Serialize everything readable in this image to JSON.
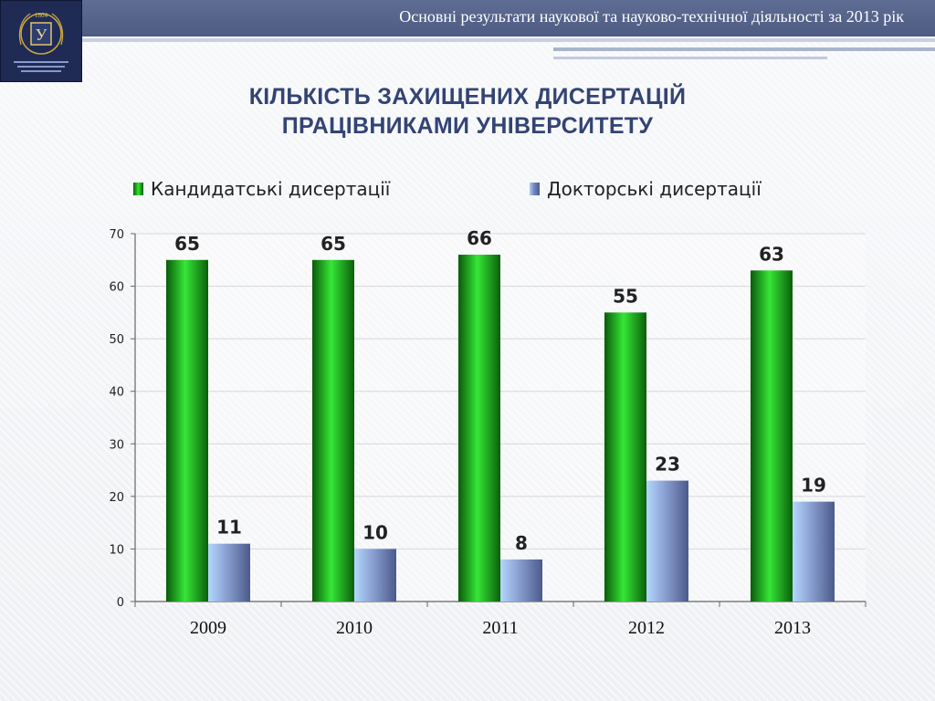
{
  "header": {
    "title": "Основні результати наукової та науково-технічної діяльності за 2013 рік"
  },
  "logo": {
    "letter": "У",
    "year": "1804"
  },
  "headline": {
    "line1": "КІЛЬКІСТЬ ЗАХИЩЕНИХ ДИСЕРТАЦІЙ",
    "line2": "ПРАЦІВНИКАМИ УНІВЕРСИТЕТУ"
  },
  "colors": {
    "header": "#5564 8b",
    "title": "#334474",
    "candidate_bar": "#1fbf1f",
    "doctoral_bar": "#7d8fc4"
  },
  "chart_data": {
    "type": "bar",
    "categories": [
      "2009",
      "2010",
      "2011",
      "2012",
      "2013"
    ],
    "series": [
      {
        "name": "Кандидатські дисертації",
        "values": [
          65,
          65,
          66,
          55,
          63
        ]
      },
      {
        "name": "Докторські дисертації",
        "values": [
          11,
          10,
          8,
          23,
          19
        ]
      }
    ],
    "ylim": [
      0,
      70
    ],
    "yticks": [
      0,
      10,
      20,
      30,
      40,
      50,
      60,
      70
    ],
    "grid": true,
    "legend_position": "top",
    "data_labels": true
  }
}
